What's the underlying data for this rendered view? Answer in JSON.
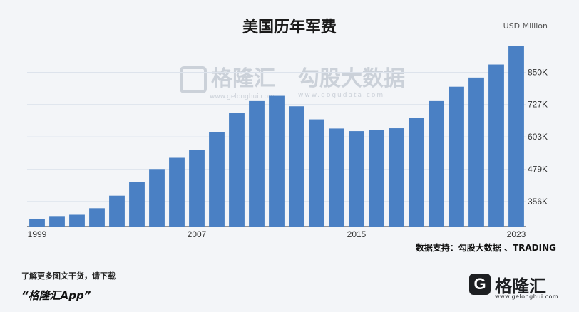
{
  "title": "美国历年军费",
  "unit_label": "USD Million",
  "source": "数据支持：勾股大数据 、TRADING",
  "cta": {
    "line1": "了解更多图文干货，请下载",
    "line2": "“格隆汇App”"
  },
  "watermark": {
    "brand1": "格隆汇",
    "brand1_url": "www.gelonghui.com",
    "brand2": "勾股大数据",
    "brand2_url": "www.gogudata.com"
  },
  "logo": {
    "mark": "G",
    "name": "格隆汇",
    "url": "www.gelonghui.com"
  },
  "colors": {
    "bar": "#4a80c4",
    "grid": "#dde3ec",
    "axis": "#333333"
  },
  "chart_data": {
    "type": "bar",
    "categories": [
      "1999",
      "2000",
      "2001",
      "2002",
      "2003",
      "2004",
      "2005",
      "2006",
      "2007",
      "2008",
      "2009",
      "2010",
      "2011",
      "2012",
      "2013",
      "2014",
      "2015",
      "2016",
      "2017",
      "2018",
      "2019",
      "2020",
      "2021",
      "2022",
      "2023"
    ],
    "values": [
      290,
      300,
      305,
      330,
      378,
      430,
      480,
      523,
      552,
      620,
      695,
      740,
      760,
      720,
      670,
      635,
      625,
      630,
      636,
      675,
      740,
      795,
      830,
      880,
      950
    ],
    "x_tick_labels": [
      "1999",
      "2007",
      "2015",
      "2023"
    ],
    "y_ticks": [
      356,
      479,
      603,
      727,
      850
    ],
    "y_tick_labels": [
      "356K",
      "479K",
      "603K",
      "727K",
      "850K"
    ],
    "ylim": [
      260,
      985
    ],
    "ylabel": "USD Million",
    "grid": true,
    "legend": "none"
  }
}
